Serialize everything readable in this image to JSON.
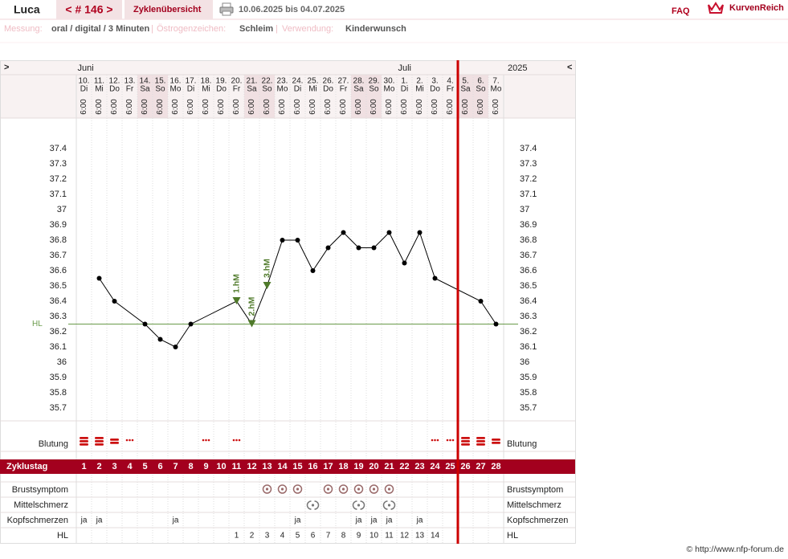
{
  "header": {
    "name": "Luca",
    "cycle": "< # 146 >",
    "overview": "Zyklenübersicht",
    "range": "10.06.2025 bis 04.07.2025",
    "faq": "FAQ",
    "logo": "KurvenReich"
  },
  "info": {
    "separator": "|",
    "items": [
      {
        "label": "Messung:",
        "value": "oral / digital / 3 Minuten"
      },
      {
        "label": "Östrogenzeichen:",
        "value": "Schleim"
      },
      {
        "label": "Verwendung:",
        "value": "Kinderwunsch"
      }
    ]
  },
  "chart_data": {
    "type": "line",
    "nav_left": ">",
    "nav_right": "<",
    "year": "2025",
    "months": [
      {
        "label": "Juni",
        "day": 1
      },
      {
        "label": "Juli",
        "day": 22
      }
    ],
    "dates": [
      {
        "day": "10.",
        "weekday": "Di"
      },
      {
        "day": "11.",
        "weekday": "Mi"
      },
      {
        "day": "12.",
        "weekday": "Do"
      },
      {
        "day": "13.",
        "weekday": "Fr"
      },
      {
        "day": "14.",
        "weekday": "Sa"
      },
      {
        "day": "15.",
        "weekday": "So"
      },
      {
        "day": "16.",
        "weekday": "Mo"
      },
      {
        "day": "17.",
        "weekday": "Di"
      },
      {
        "day": "18.",
        "weekday": "Mi"
      },
      {
        "day": "19.",
        "weekday": "Do"
      },
      {
        "day": "20.",
        "weekday": "Fr"
      },
      {
        "day": "21.",
        "weekday": "Sa"
      },
      {
        "day": "22.",
        "weekday": "So"
      },
      {
        "day": "23.",
        "weekday": "Mo"
      },
      {
        "day": "24.",
        "weekday": "Di"
      },
      {
        "day": "25.",
        "weekday": "Mi"
      },
      {
        "day": "26.",
        "weekday": "Do"
      },
      {
        "day": "27.",
        "weekday": "Fr"
      },
      {
        "day": "28.",
        "weekday": "Sa"
      },
      {
        "day": "29.",
        "weekday": "So"
      },
      {
        "day": "30.",
        "weekday": "Mo"
      },
      {
        "day": "1.",
        "weekday": "Di"
      },
      {
        "day": "2.",
        "weekday": "Mi"
      },
      {
        "day": "3.",
        "weekday": "Do"
      },
      {
        "day": "4.",
        "weekday": "Fr"
      },
      {
        "day": "5.",
        "weekday": "Sa"
      },
      {
        "day": "6.",
        "weekday": "So"
      },
      {
        "day": "7.",
        "weekday": "Mo"
      }
    ],
    "measurement_time": "6:00",
    "highlighted_days": [
      5,
      6,
      12,
      13,
      19,
      20,
      26,
      27
    ],
    "highlight_color": "#f0e0e2",
    "x": [
      2,
      3,
      5,
      6,
      7,
      8,
      11,
      12,
      13,
      14,
      15,
      16,
      17,
      18,
      19,
      20,
      21,
      22,
      23,
      24,
      27,
      28
    ],
    "values": [
      36.55,
      36.4,
      36.25,
      36.15,
      36.1,
      36.25,
      36.4,
      36.25,
      36.5,
      36.8,
      36.8,
      36.6,
      36.75,
      36.85,
      36.75,
      36.75,
      36.85,
      36.65,
      36.85,
      36.55,
      36.4,
      36.25
    ],
    "color": "#000000",
    "xlim": [
      1,
      28
    ],
    "ylim": [
      35.6,
      37.6
    ],
    "yticks": [
      37.4,
      37.3,
      37.2,
      37.1,
      37,
      36.9,
      36.8,
      36.7,
      36.6,
      36.5,
      36.4,
      36.3,
      36.2,
      36.1,
      36,
      35.9,
      35.8,
      35.7
    ],
    "annotations": [
      {
        "x": 11,
        "label": "1.hM"
      },
      {
        "x": 12,
        "label": "2.hM"
      },
      {
        "x": 13,
        "label": "3.hM"
      }
    ],
    "annotation_color": "#4f7a2a",
    "coverline": {
      "label": "HL",
      "value": 36.25,
      "color": "#6a9a4a"
    },
    "rows": {
      "bleeding": {
        "label": "Blutung",
        "color": "#cc1111",
        "levels": [
          3,
          3,
          2,
          1,
          null,
          null,
          null,
          null,
          1,
          null,
          1,
          null,
          null,
          null,
          null,
          null,
          null,
          null,
          null,
          null,
          null,
          null,
          null,
          1,
          1,
          3,
          3,
          2
        ]
      },
      "cycle_day": {
        "label": "Zyklustag",
        "color": "#a3001e",
        "values": [
          1,
          2,
          3,
          4,
          5,
          6,
          7,
          8,
          9,
          10,
          11,
          12,
          13,
          14,
          15,
          16,
          17,
          18,
          19,
          20,
          21,
          22,
          23,
          24,
          25,
          26,
          27,
          28
        ]
      },
      "breast": {
        "label": "Brustsymptom",
        "days": [
          13,
          14,
          15,
          17,
          18,
          19,
          20,
          21
        ]
      },
      "mittelschmerz": {
        "label": "Mittelschmerz",
        "days": [
          16,
          19,
          21
        ]
      },
      "headache": {
        "label": "Kopfschmerzen",
        "texts": [
          "ja",
          "ja",
          null,
          null,
          null,
          null,
          "ja",
          null,
          null,
          null,
          null,
          null,
          null,
          null,
          "ja",
          null,
          null,
          null,
          "ja",
          "ja",
          "ja",
          null,
          "ja",
          null,
          null,
          null,
          null,
          null
        ]
      },
      "hl": {
        "label": "HL",
        "values": [
          null,
          null,
          null,
          null,
          null,
          null,
          null,
          null,
          null,
          null,
          1,
          2,
          3,
          4,
          5,
          6,
          7,
          8,
          9,
          10,
          11,
          12,
          13,
          14,
          null,
          null,
          null,
          null
        ]
      }
    }
  },
  "footer": "© http://www.nfp-forum.de"
}
